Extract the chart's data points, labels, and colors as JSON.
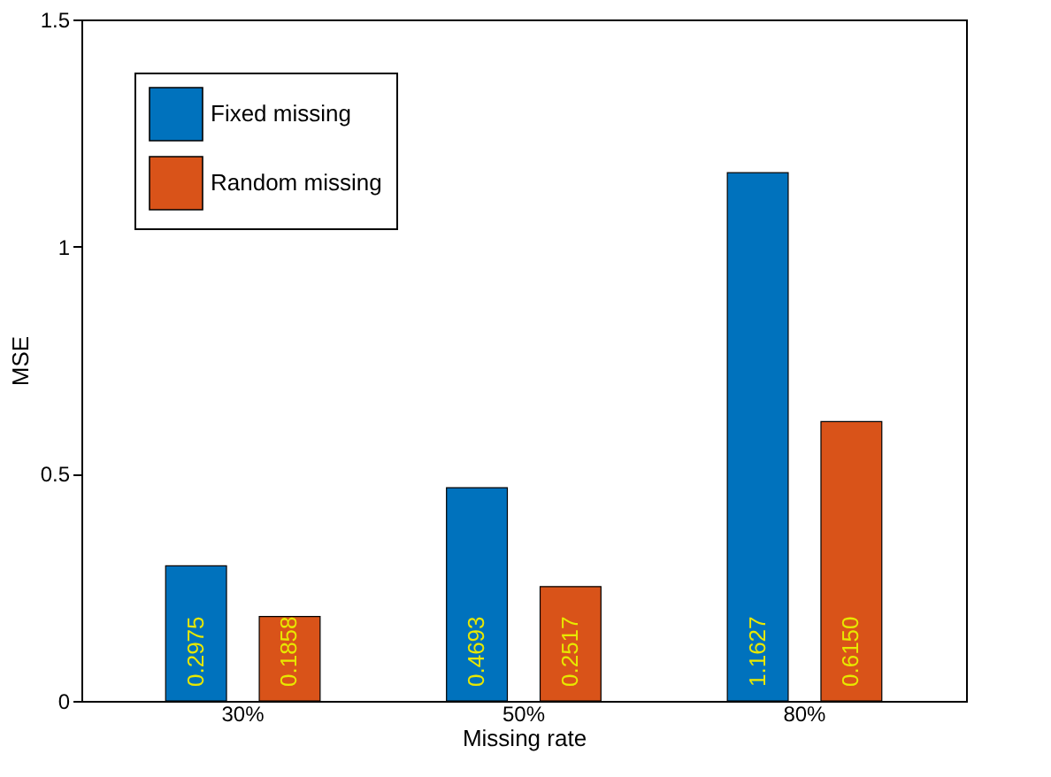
{
  "chart_data": {
    "type": "bar",
    "xlabel": "Missing rate",
    "ylabel": "MSE",
    "categories": [
      "30%",
      "50%",
      "80%"
    ],
    "series": [
      {
        "name": "Fixed missing",
        "color": "#0072bd",
        "values": [
          0.2975,
          0.4693,
          1.1627
        ],
        "value_labels": [
          "0.2975",
          "0.4693",
          "1.1627"
        ]
      },
      {
        "name": "Random missing",
        "color": "#d95319",
        "values": [
          0.1858,
          0.2517,
          0.615
        ],
        "value_labels": [
          "0.1858",
          "0.2517",
          "0.6150"
        ]
      }
    ],
    "ylim": [
      0,
      1.5
    ],
    "yticks": [
      0,
      0.5,
      1,
      1.5
    ],
    "legend": "top left",
    "grid": false
  }
}
